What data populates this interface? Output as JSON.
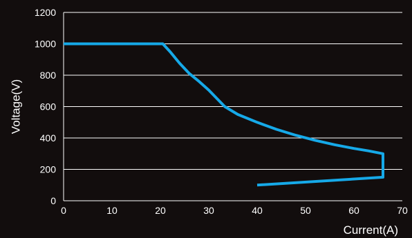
{
  "chart_data": {
    "type": "line",
    "xlabel": "Current(A)",
    "ylabel": "Voltage(V)",
    "xlim": [
      0,
      70
    ],
    "ylim": [
      0,
      1200
    ],
    "x_ticks": [
      0,
      10,
      20,
      30,
      40,
      50,
      60,
      70
    ],
    "y_ticks": [
      0,
      200,
      400,
      600,
      800,
      1000,
      1200
    ],
    "grid": "horizontal",
    "legend": "none",
    "colors": {
      "background": "#120d0d",
      "line": "#16a9e8",
      "grid": "#ffffff",
      "text": "#ffffff"
    },
    "series": [
      {
        "x": [
          0,
          20,
          20.5,
          22,
          24,
          26,
          28,
          30,
          33.3,
          36,
          40,
          44,
          48,
          52,
          56,
          60,
          63,
          66,
          66,
          40
        ],
        "y": [
          1000,
          1000,
          1000,
          950,
          875,
          810,
          760,
          705,
          600,
          550,
          500,
          455,
          417,
          385,
          357,
          333,
          318,
          300,
          150,
          100
        ]
      }
    ]
  }
}
